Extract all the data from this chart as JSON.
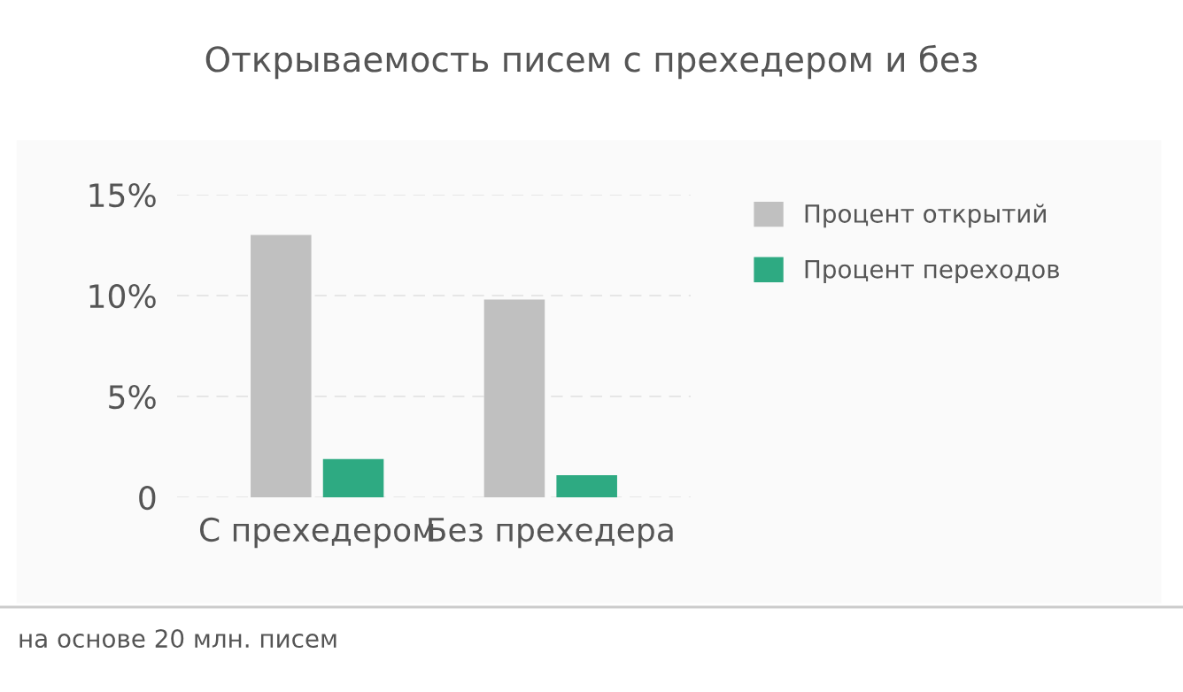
{
  "chart_data": {
    "type": "bar",
    "title": "Открываемость писем с прехедером и без",
    "categories": [
      "С прехедером",
      "Без прехедера"
    ],
    "series": [
      {
        "name": "Процент открытий",
        "color": "#c0c0c0",
        "values": [
          13,
          9.8
        ]
      },
      {
        "name": "Процент переходов",
        "color": "#2eaa82",
        "values": [
          1.9,
          1.1
        ]
      }
    ],
    "ylim": [
      0,
      15
    ],
    "yticks": [
      {
        "value": 0,
        "label": "0"
      },
      {
        "value": 5,
        "label": "5%"
      },
      {
        "value": 10,
        "label": "10%"
      },
      {
        "value": 15,
        "label": "15%"
      }
    ],
    "grid": "y",
    "legend": "right",
    "annotations": [
      "на основе 20 млн. писем"
    ]
  }
}
